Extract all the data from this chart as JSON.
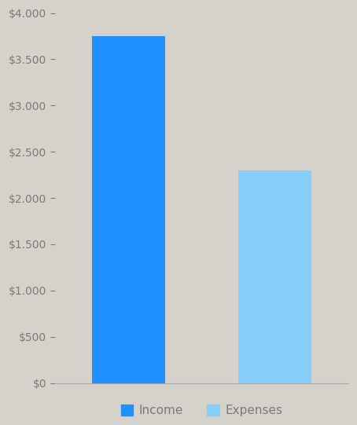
{
  "categories": [
    "Income",
    "Expenses"
  ],
  "values": [
    3750,
    2300
  ],
  "bar_colors": [
    "#1E90FF",
    "#87CEFA"
  ],
  "background_color": "#D5D2CB",
  "plot_area_color": "#D5D2CB",
  "ylim": [
    0,
    4000
  ],
  "yticks": [
    0,
    500,
    1000,
    1500,
    2000,
    2500,
    3000,
    3500,
    4000
  ],
  "ytick_labels": [
    "$0",
    "$500",
    "$1.000",
    "$1.500",
    "$2.000",
    "$2.500",
    "$3.000",
    "$3.500",
    "$4.000"
  ],
  "tick_color": "#7A7A7A",
  "legend_labels": [
    "Income",
    "Expenses"
  ],
  "legend_colors": [
    "#1E90FF",
    "#87CEFA"
  ],
  "figsize": [
    4.54,
    5.41
  ],
  "dpi": 100,
  "income_value": 3750,
  "expenses_value": 2300
}
